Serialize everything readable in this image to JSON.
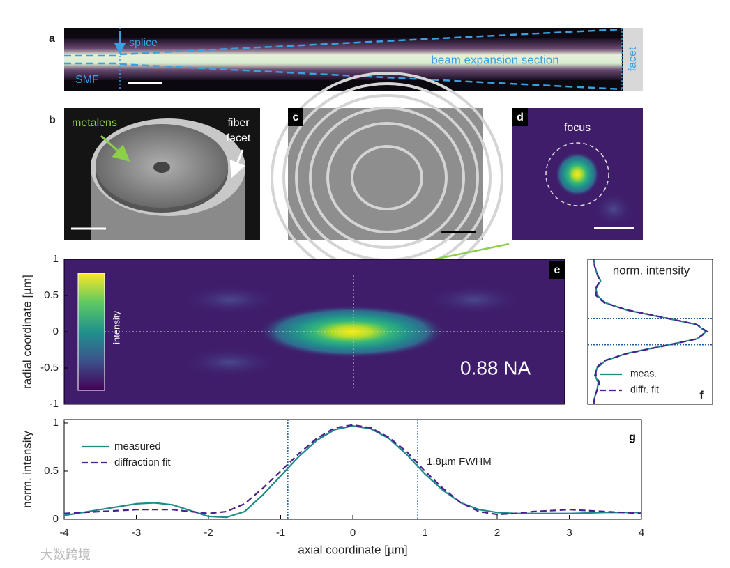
{
  "panels": {
    "a": {
      "label": "a",
      "splice": "splice",
      "smf": "SMF",
      "section": "beam expansion section",
      "facet": "facet"
    },
    "b": {
      "label": "b",
      "metalens": "metalens",
      "fiber_facet": [
        "fiber",
        "facet"
      ]
    },
    "c": {
      "label": "c"
    },
    "d": {
      "label": "d",
      "focus": "focus"
    }
  },
  "chart_data": [
    {
      "type": "heatmap",
      "label": "e",
      "ylabel": "radial coordinate [µm]",
      "ylim": [
        -1,
        1
      ],
      "yticks": [
        -1,
        -0.5,
        0,
        0.5,
        1
      ],
      "colorbar_label": "intensity",
      "annotation": "0.88 NA"
    },
    {
      "type": "line",
      "label": "f",
      "orientation": "vertical",
      "title": "norm. intensity",
      "xlim": [
        0,
        1
      ],
      "ylim": [
        -1,
        1
      ],
      "y": [
        -1,
        -0.9,
        -0.8,
        -0.7,
        -0.6,
        -0.5,
        -0.4,
        -0.3,
        -0.2,
        -0.1,
        0,
        0.1,
        0.2,
        0.3,
        0.4,
        0.5,
        0.6,
        0.7,
        0.8,
        0.9,
        1
      ],
      "series": [
        {
          "name": "meas.",
          "color": "#1f8a8a",
          "style": "solid",
          "values": [
            0.02,
            0.03,
            0.05,
            0.06,
            0.03,
            0.05,
            0.12,
            0.3,
            0.6,
            0.9,
            0.98,
            0.9,
            0.6,
            0.3,
            0.12,
            0.05,
            0.04,
            0.08,
            0.05,
            0.03,
            0.02
          ]
        },
        {
          "name": "diffr. fit",
          "color": "#4b1f8f",
          "style": "dashed",
          "values": [
            0.02,
            0.03,
            0.05,
            0.07,
            0.04,
            0.04,
            0.11,
            0.31,
            0.61,
            0.9,
            0.99,
            0.9,
            0.61,
            0.31,
            0.11,
            0.04,
            0.04,
            0.07,
            0.05,
            0.03,
            0.02
          ]
        }
      ],
      "hlines": [
        -0.18,
        0.18
      ]
    },
    {
      "type": "line",
      "label": "g",
      "xlabel": "axial coordinate [µm]",
      "ylabel": "norm. intensity",
      "xlim": [
        -4,
        4
      ],
      "ylim": [
        0,
        1.036
      ],
      "xticks": [
        -4,
        -3,
        -2,
        -1,
        0,
        1,
        2,
        3,
        4
      ],
      "yticks": [
        0,
        0.5,
        1
      ],
      "x": [
        -4,
        -3.5,
        -3,
        -2.75,
        -2.5,
        -2.25,
        -2,
        -1.75,
        -1.5,
        -1.25,
        -1,
        -0.75,
        -0.5,
        -0.25,
        0,
        0.25,
        0.5,
        0.75,
        1,
        1.25,
        1.5,
        1.75,
        2,
        2.25,
        2.5,
        3,
        3.5,
        4
      ],
      "series": [
        {
          "name": "measured",
          "color": "#1f8a8a",
          "style": "solid",
          "values": [
            0.04,
            0.1,
            0.16,
            0.17,
            0.15,
            0.09,
            0.03,
            0.02,
            0.08,
            0.25,
            0.45,
            0.65,
            0.82,
            0.93,
            0.97,
            0.94,
            0.84,
            0.67,
            0.47,
            0.3,
            0.17,
            0.1,
            0.07,
            0.06,
            0.06,
            0.06,
            0.07,
            0.07
          ]
        },
        {
          "name": "diffraction fit",
          "color": "#4b1f8f",
          "style": "dashed",
          "values": [
            0.06,
            0.08,
            0.1,
            0.1,
            0.1,
            0.08,
            0.06,
            0.08,
            0.16,
            0.32,
            0.5,
            0.68,
            0.84,
            0.95,
            0.98,
            0.95,
            0.85,
            0.7,
            0.5,
            0.32,
            0.17,
            0.08,
            0.05,
            0.06,
            0.08,
            0.1,
            0.08,
            0.06
          ]
        }
      ],
      "vlines": [
        -0.9,
        0.9
      ],
      "annotation": "1.8µm FWHM"
    }
  ],
  "watermark": "大数跨境"
}
